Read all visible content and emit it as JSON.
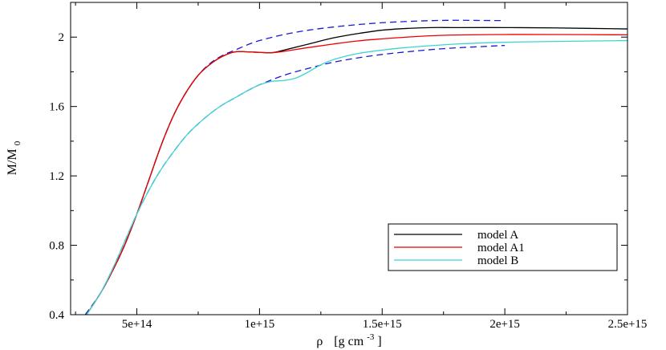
{
  "chart_data": {
    "type": "line",
    "xlabel_symbol": "ρ",
    "xlabel_units": "[g cm",
    "xlabel_exp": "-3",
    "xlabel_close": "]",
    "ylabel_main": "M/M",
    "ylabel_sub": "0",
    "xlim": [
      230000000000000.0,
      2500000000000000.0
    ],
    "ylim": [
      0.4,
      2.2
    ],
    "xticks": [
      {
        "value": 500000000000000.0,
        "label": "5e+14"
      },
      {
        "value": 1000000000000000.0,
        "label": "1e+15"
      },
      {
        "value": 1500000000000000.0,
        "label": "1.5e+15"
      },
      {
        "value": 2000000000000000.0,
        "label": "2e+15"
      },
      {
        "value": 2500000000000000.0,
        "label": "2.5e+15"
      }
    ],
    "yticks": [
      {
        "value": 0.4,
        "label": "0.4"
      },
      {
        "value": 0.8,
        "label": "0.8"
      },
      {
        "value": 1.2,
        "label": "1.2"
      },
      {
        "value": 1.6,
        "label": "1.6"
      },
      {
        "value": 2.0,
        "label": "2"
      }
    ],
    "grid": false,
    "legend_position": "bottom-right",
    "series": [
      {
        "name": "model A",
        "color": "#000000",
        "dashed": false,
        "legend": true,
        "points": [
          [
            295000000000000.0,
            0.4
          ],
          [
            350000000000000.0,
            0.52
          ],
          [
            400000000000000.0,
            0.65
          ],
          [
            450000000000000.0,
            0.8
          ],
          [
            500000000000000.0,
            0.98
          ],
          [
            550000000000000.0,
            1.18
          ],
          [
            600000000000000.0,
            1.38
          ],
          [
            650000000000000.0,
            1.55
          ],
          [
            700000000000000.0,
            1.68
          ],
          [
            750000000000000.0,
            1.78
          ],
          [
            800000000000000.0,
            1.845
          ],
          [
            850000000000000.0,
            1.89
          ],
          [
            900000000000000.0,
            1.915
          ],
          [
            950000000000000.0,
            1.915
          ],
          [
            1000000000000000.0,
            1.912
          ],
          [
            1050000000000000.0,
            1.91
          ],
          [
            1100000000000000.0,
            1.925
          ],
          [
            1200000000000000.0,
            1.96
          ],
          [
            1300000000000000.0,
            1.995
          ],
          [
            1400000000000000.0,
            2.02
          ],
          [
            1500000000000000.0,
            2.04
          ],
          [
            1600000000000000.0,
            2.05
          ],
          [
            1700000000000000.0,
            2.055
          ],
          [
            1800000000000000.0,
            2.055
          ],
          [
            2000000000000000.0,
            2.055
          ],
          [
            2200000000000000.0,
            2.053
          ],
          [
            2500000000000000.0,
            2.047
          ]
        ]
      },
      {
        "name": "model A1",
        "color": "#ee0000",
        "dashed": false,
        "legend": true,
        "points": [
          [
            295000000000000.0,
            0.4
          ],
          [
            350000000000000.0,
            0.52
          ],
          [
            400000000000000.0,
            0.65
          ],
          [
            450000000000000.0,
            0.8
          ],
          [
            500000000000000.0,
            0.98
          ],
          [
            550000000000000.0,
            1.18
          ],
          [
            600000000000000.0,
            1.38
          ],
          [
            650000000000000.0,
            1.55
          ],
          [
            700000000000000.0,
            1.68
          ],
          [
            750000000000000.0,
            1.78
          ],
          [
            800000000000000.0,
            1.845
          ],
          [
            850000000000000.0,
            1.89
          ],
          [
            900000000000000.0,
            1.915
          ],
          [
            950000000000000.0,
            1.915
          ],
          [
            1000000000000000.0,
            1.912
          ],
          [
            1050000000000000.0,
            1.91
          ],
          [
            1100000000000000.0,
            1.918
          ],
          [
            1200000000000000.0,
            1.94
          ],
          [
            1300000000000000.0,
            1.96
          ],
          [
            1400000000000000.0,
            1.978
          ],
          [
            1500000000000000.0,
            1.99
          ],
          [
            1600000000000000.0,
            2.0
          ],
          [
            1700000000000000.0,
            2.008
          ],
          [
            1800000000000000.0,
            2.012
          ],
          [
            2000000000000000.0,
            2.015
          ],
          [
            2200000000000000.0,
            2.015
          ],
          [
            2500000000000000.0,
            2.013
          ]
        ]
      },
      {
        "name": "model B",
        "color": "#3fd4d0",
        "dashed": false,
        "legend": true,
        "points": [
          [
            295000000000000.0,
            0.4
          ],
          [
            350000000000000.0,
            0.52
          ],
          [
            400000000000000.0,
            0.66
          ],
          [
            450000000000000.0,
            0.82
          ],
          [
            500000000000000.0,
            0.98
          ],
          [
            550000000000000.0,
            1.12
          ],
          [
            600000000000000.0,
            1.24
          ],
          [
            650000000000000.0,
            1.34
          ],
          [
            700000000000000.0,
            1.43
          ],
          [
            750000000000000.0,
            1.5
          ],
          [
            800000000000000.0,
            1.56
          ],
          [
            850000000000000.0,
            1.61
          ],
          [
            900000000000000.0,
            1.65
          ],
          [
            950000000000000.0,
            1.69
          ],
          [
            1000000000000000.0,
            1.725
          ],
          [
            1050000000000000.0,
            1.745
          ],
          [
            1100000000000000.0,
            1.75
          ],
          [
            1150000000000000.0,
            1.765
          ],
          [
            1200000000000000.0,
            1.8
          ],
          [
            1250000000000000.0,
            1.84
          ],
          [
            1300000000000000.0,
            1.87
          ],
          [
            1400000000000000.0,
            1.905
          ],
          [
            1500000000000000.0,
            1.925
          ],
          [
            1600000000000000.0,
            1.94
          ],
          [
            1800000000000000.0,
            1.96
          ],
          [
            2000000000000000.0,
            1.97
          ],
          [
            2200000000000000.0,
            1.975
          ],
          [
            2500000000000000.0,
            1.98
          ]
        ]
      },
      {
        "name": "",
        "color": "#1a1ad6",
        "dashed": true,
        "legend": false,
        "points": [
          [
            290000000000000.0,
            0.4
          ],
          [
            350000000000000.0,
            0.52
          ],
          [
            400000000000000.0,
            0.65
          ],
          [
            450000000000000.0,
            0.8
          ],
          [
            500000000000000.0,
            0.98
          ],
          [
            550000000000000.0,
            1.18
          ],
          [
            600000000000000.0,
            1.38
          ],
          [
            650000000000000.0,
            1.55
          ],
          [
            700000000000000.0,
            1.68
          ],
          [
            750000000000000.0,
            1.78
          ],
          [
            800000000000000.0,
            1.85
          ],
          [
            850000000000000.0,
            1.895
          ],
          [
            900000000000000.0,
            1.925
          ],
          [
            950000000000000.0,
            1.955
          ],
          [
            1000000000000000.0,
            1.98
          ],
          [
            1100000000000000.0,
            2.015
          ],
          [
            1200000000000000.0,
            2.04
          ],
          [
            1300000000000000.0,
            2.058
          ],
          [
            1400000000000000.0,
            2.072
          ],
          [
            1500000000000000.0,
            2.083
          ],
          [
            1600000000000000.0,
            2.09
          ],
          [
            1700000000000000.0,
            2.095
          ],
          [
            1800000000000000.0,
            2.097
          ],
          [
            1900000000000000.0,
            2.096
          ],
          [
            2000000000000000.0,
            2.095
          ]
        ]
      },
      {
        "name": "",
        "color": "#1a1ad6",
        "dashed": true,
        "legend": false,
        "points": [
          [
            290000000000000.0,
            0.4
          ],
          [
            350000000000000.0,
            0.52
          ],
          [
            400000000000000.0,
            0.66
          ],
          [
            450000000000000.0,
            0.82
          ],
          [
            500000000000000.0,
            0.98
          ],
          [
            550000000000000.0,
            1.12
          ],
          [
            600000000000000.0,
            1.24
          ],
          [
            650000000000000.0,
            1.34
          ],
          [
            700000000000000.0,
            1.43
          ],
          [
            750000000000000.0,
            1.5
          ],
          [
            800000000000000.0,
            1.56
          ],
          [
            850000000000000.0,
            1.61
          ],
          [
            900000000000000.0,
            1.65
          ],
          [
            950000000000000.0,
            1.69
          ],
          [
            1000000000000000.0,
            1.725
          ],
          [
            1100000000000000.0,
            1.78
          ],
          [
            1200000000000000.0,
            1.82
          ],
          [
            1300000000000000.0,
            1.855
          ],
          [
            1400000000000000.0,
            1.88
          ],
          [
            1500000000000000.0,
            1.9
          ],
          [
            1600000000000000.0,
            1.915
          ],
          [
            1700000000000000.0,
            1.928
          ],
          [
            1800000000000000.0,
            1.938
          ],
          [
            1900000000000000.0,
            1.945
          ],
          [
            2000000000000000.0,
            1.952
          ]
        ]
      }
    ]
  }
}
